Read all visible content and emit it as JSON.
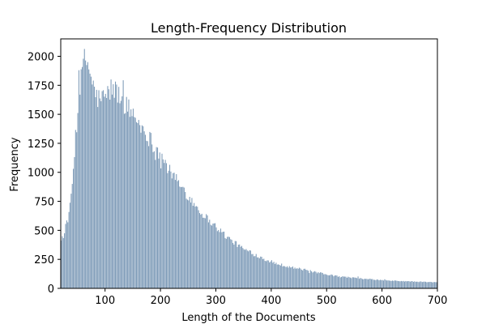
{
  "chart_data": {
    "type": "bar",
    "title": "Length-Frequency Distribution",
    "xlabel": "Length of the Documents",
    "ylabel": "Frequency",
    "xlim": [
      20,
      700
    ],
    "ylim": [
      0,
      2150
    ],
    "x_ticks": [
      100,
      200,
      300,
      400,
      500,
      600,
      700
    ],
    "y_ticks": [
      0,
      250,
      500,
      750,
      1000,
      1250,
      1500,
      1750,
      2000
    ],
    "grid": false,
    "bar_color": "#7e9bb8",
    "profile_points": {
      "x": [
        20,
        25,
        30,
        35,
        40,
        45,
        50,
        55,
        60,
        65,
        70,
        75,
        80,
        85,
        90,
        100,
        110,
        120,
        130,
        140,
        150,
        160,
        170,
        180,
        190,
        200,
        210,
        220,
        240,
        260,
        280,
        300,
        320,
        340,
        360,
        380,
        400,
        420,
        440,
        460,
        480,
        500,
        520,
        540,
        560,
        580,
        600,
        620,
        640,
        660,
        680,
        700
      ],
      "y": [
        430,
        460,
        520,
        650,
        900,
        1250,
        1550,
        1750,
        1950,
        1980,
        1900,
        1800,
        1700,
        1640,
        1630,
        1650,
        1720,
        1700,
        1620,
        1560,
        1500,
        1430,
        1360,
        1290,
        1220,
        1140,
        1060,
        980,
        860,
        730,
        620,
        530,
        440,
        370,
        310,
        270,
        225,
        200,
        178,
        160,
        138,
        120,
        103,
        95,
        85,
        78,
        70,
        65,
        62,
        58,
        55,
        52
      ]
    },
    "num_bars": 340
  }
}
